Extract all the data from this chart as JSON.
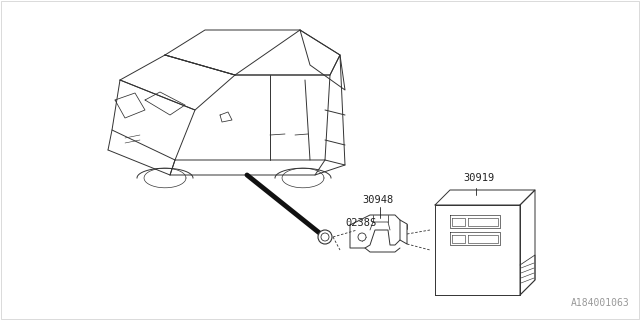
{
  "background_color": "#ffffff",
  "fig_width": 6.4,
  "fig_height": 3.2,
  "dpi": 100,
  "watermark": "A184001063",
  "watermark_color": "#999999",
  "watermark_fontsize": 7,
  "label_30948": "30948",
  "label_0238S": "0238S",
  "label_30919": "30919",
  "label_fontsize": 7.5,
  "label_color": "#222222",
  "line_color": "#333333",
  "line_width": 0.7
}
